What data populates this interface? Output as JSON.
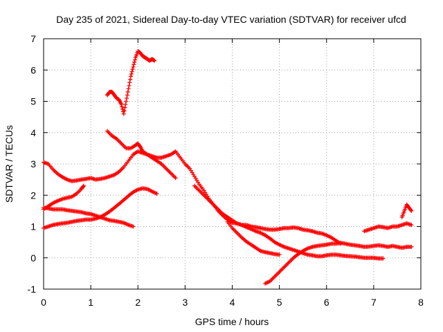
{
  "chart_data": {
    "type": "scatter",
    "title": "Day 235 of 2021, Sidereal Day-to-day VTEC variation (SDTVAR) for receiver ufcd",
    "xlabel": "GPS time / hours",
    "ylabel": "SDTVAR / TECUs",
    "xlim": [
      0,
      8
    ],
    "ylim": [
      -1,
      7
    ],
    "xticks": [
      "0",
      "1",
      "2",
      "3",
      "4",
      "5",
      "6",
      "7",
      "8"
    ],
    "yticks": [
      "-1",
      "0",
      "1",
      "2",
      "3",
      "4",
      "5",
      "6",
      "7"
    ],
    "grid": true,
    "marker": "+",
    "color": "#ff0000",
    "series": [
      {
        "name": "s1",
        "x": [
          0.0,
          0.1,
          0.2,
          0.3,
          0.4,
          0.5,
          0.6,
          0.7,
          0.8,
          0.9,
          1.0,
          1.1,
          1.2,
          1.3,
          1.4,
          1.5,
          1.6,
          1.7,
          1.8,
          1.9,
          2.0,
          2.1,
          2.2,
          2.3,
          2.4,
          2.5,
          2.6,
          2.7,
          2.8
        ],
        "y": [
          3.05,
          3.0,
          2.82,
          2.68,
          2.58,
          2.5,
          2.45,
          2.47,
          2.5,
          2.52,
          2.55,
          2.5,
          2.52,
          2.55,
          2.6,
          2.65,
          2.75,
          2.9,
          3.1,
          3.3,
          3.4,
          3.35,
          3.3,
          3.2,
          3.1,
          3.0,
          2.85,
          2.7,
          2.55
        ]
      },
      {
        "name": "s2",
        "x": [
          0.0,
          0.1,
          0.2,
          0.3,
          0.4,
          0.5,
          0.6,
          0.7,
          0.8,
          0.85
        ],
        "y": [
          1.55,
          1.65,
          1.75,
          1.82,
          1.88,
          1.92,
          1.95,
          2.05,
          2.2,
          2.3
        ]
      },
      {
        "name": "s3",
        "x": [
          0.0,
          0.1,
          0.2,
          0.3,
          0.4,
          0.5,
          0.6,
          0.7,
          0.8,
          0.9,
          1.0,
          1.1,
          1.2,
          1.3,
          1.4,
          1.5,
          1.6,
          1.7,
          1.8,
          1.9
        ],
        "y": [
          1.6,
          1.58,
          1.55,
          1.55,
          1.55,
          1.52,
          1.5,
          1.48,
          1.46,
          1.42,
          1.4,
          1.35,
          1.3,
          1.25,
          1.2,
          1.18,
          1.15,
          1.12,
          1.05,
          1.0
        ]
      },
      {
        "name": "s4",
        "x": [
          0.0,
          0.1,
          0.2,
          0.3,
          0.4,
          0.5,
          0.6,
          0.7,
          0.8,
          0.9,
          1.0,
          1.1,
          1.2,
          1.3,
          1.4,
          1.5,
          1.6,
          1.7,
          1.8,
          1.9,
          2.0,
          2.1,
          2.2,
          2.3,
          2.4
        ],
        "y": [
          0.95,
          1.0,
          1.05,
          1.08,
          1.1,
          1.12,
          1.15,
          1.18,
          1.2,
          1.22,
          1.22,
          1.25,
          1.3,
          1.38,
          1.48,
          1.6,
          1.72,
          1.85,
          1.98,
          2.1,
          2.18,
          2.22,
          2.2,
          2.12,
          2.05
        ]
      },
      {
        "name": "s5",
        "x": [
          1.35,
          1.4,
          1.45,
          1.5,
          1.55,
          1.6,
          1.65,
          1.7,
          1.75,
          1.8,
          1.85,
          1.9,
          1.95,
          2.0,
          2.05,
          2.1,
          2.15,
          2.2,
          2.25,
          2.3,
          2.35
        ],
        "y": [
          5.2,
          5.3,
          5.3,
          5.2,
          5.1,
          5.05,
          4.9,
          4.6,
          5.0,
          5.4,
          5.8,
          6.1,
          6.4,
          6.6,
          6.55,
          6.45,
          6.4,
          6.35,
          6.3,
          6.35,
          6.3
        ]
      },
      {
        "name": "s6",
        "x": [
          1.35,
          1.45,
          1.55,
          1.65,
          1.75,
          1.85,
          1.95,
          2.0,
          2.05,
          2.1,
          2.2,
          2.3,
          2.4,
          2.5,
          2.6,
          2.7,
          2.8,
          2.9,
          3.0,
          3.1,
          3.2,
          3.3,
          3.4,
          3.5,
          3.6,
          3.7,
          3.8,
          3.9,
          4.0,
          4.1,
          4.2,
          4.3,
          4.4,
          4.5,
          4.6,
          4.7,
          4.8,
          4.9,
          5.0,
          5.1,
          5.2,
          5.3,
          5.4,
          5.5,
          5.6,
          5.7,
          5.8,
          5.9,
          6.0,
          6.1,
          6.2,
          6.3
        ],
        "y": [
          4.05,
          3.9,
          3.8,
          3.65,
          3.5,
          3.5,
          3.6,
          3.65,
          3.55,
          3.4,
          3.3,
          3.25,
          3.2,
          3.2,
          3.25,
          3.3,
          3.4,
          3.2,
          3.0,
          2.85,
          2.6,
          2.35,
          2.15,
          1.9,
          1.7,
          1.5,
          1.35,
          1.22,
          1.12,
          1.1,
          1.05,
          1.05,
          1.0,
          0.98,
          0.95,
          0.92,
          0.9,
          0.9,
          0.92,
          0.95,
          0.95,
          0.97,
          0.95,
          0.9,
          0.88,
          0.85,
          0.8,
          0.78,
          0.72,
          0.65,
          0.55,
          0.45
        ]
      },
      {
        "name": "s7",
        "x": [
          3.2,
          3.3,
          3.4,
          3.5,
          3.6,
          3.7,
          3.8,
          3.9,
          4.0,
          4.1,
          4.2,
          4.3,
          4.4,
          4.5,
          4.6,
          4.7,
          4.8,
          4.9,
          5.0,
          5.1,
          5.2,
          5.3,
          5.4,
          5.5,
          5.6,
          5.7,
          5.8,
          5.9,
          6.0,
          6.1,
          6.2,
          6.3,
          6.4,
          6.5,
          6.6,
          6.7,
          6.8,
          6.9,
          7.0,
          7.1,
          7.2
        ],
        "y": [
          2.3,
          2.15,
          2.0,
          1.85,
          1.7,
          1.55,
          1.4,
          1.3,
          1.2,
          1.1,
          1.05,
          0.98,
          0.92,
          0.85,
          0.8,
          0.72,
          0.62,
          0.5,
          0.42,
          0.35,
          0.3,
          0.25,
          0.2,
          0.15,
          0.1,
          0.08,
          0.05,
          0.05,
          0.08,
          0.1,
          0.1,
          0.08,
          0.06,
          0.05,
          0.04,
          0.02,
          0.0,
          0.0,
          0.0,
          -0.02,
          -0.02
        ]
      },
      {
        "name": "s8",
        "x": [
          3.9,
          4.0,
          4.1,
          4.2,
          4.3,
          4.4,
          4.5,
          4.6,
          4.7,
          4.8,
          4.9,
          5.0
        ],
        "y": [
          1.15,
          0.95,
          0.8,
          0.65,
          0.52,
          0.42,
          0.32,
          0.22,
          0.18,
          0.15,
          0.12,
          0.1
        ]
      },
      {
        "name": "s9",
        "x": [
          4.7,
          4.8,
          4.9,
          5.0,
          5.1,
          5.2,
          5.3,
          5.4,
          5.5,
          5.6,
          5.7,
          5.8,
          5.9,
          6.0,
          6.1,
          6.2,
          6.3,
          6.4,
          6.5,
          6.6,
          6.7,
          6.8,
          6.9,
          7.0,
          7.1,
          7.2,
          7.3,
          7.4,
          7.5,
          7.6,
          7.7,
          7.8
        ],
        "y": [
          -0.82,
          -0.75,
          -0.6,
          -0.45,
          -0.3,
          -0.15,
          0.0,
          0.12,
          0.22,
          0.3,
          0.35,
          0.38,
          0.4,
          0.42,
          0.45,
          0.45,
          0.48,
          0.45,
          0.42,
          0.4,
          0.38,
          0.35,
          0.36,
          0.38,
          0.4,
          0.38,
          0.35,
          0.38,
          0.35,
          0.32,
          0.35,
          0.35
        ]
      },
      {
        "name": "s10",
        "x": [
          6.8,
          6.9,
          7.0,
          7.1,
          7.2,
          7.3,
          7.4,
          7.5,
          7.6,
          7.7,
          7.8
        ],
        "y": [
          0.85,
          0.9,
          0.95,
          1.0,
          0.98,
          0.95,
          1.0,
          1.0,
          1.05,
          1.1,
          1.05
        ]
      },
      {
        "name": "s11",
        "x": [
          7.6,
          7.65,
          7.7,
          7.75,
          7.8
        ],
        "y": [
          1.3,
          1.5,
          1.7,
          1.6,
          1.5
        ]
      }
    ]
  }
}
